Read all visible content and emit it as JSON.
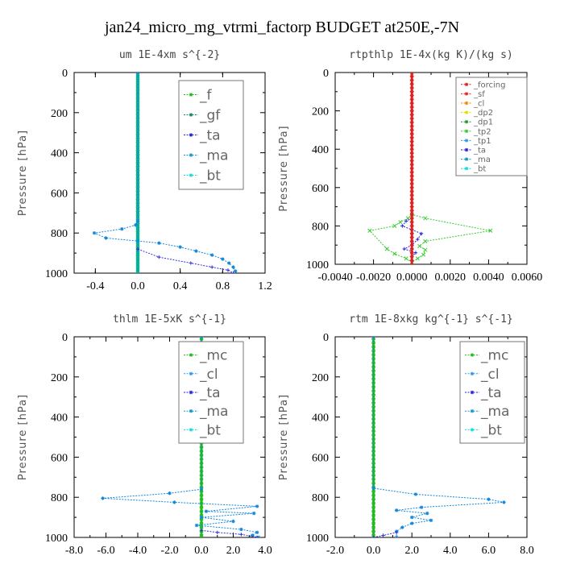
{
  "figure_title": "jan24_micro_mg_vtrmi_factorp  BUDGET at250E,-7N",
  "chart_data": [
    {
      "type": "line",
      "title": "um  1E-4xm s^{-2}",
      "ylabel": "Pressure [hPa]",
      "xlim": [
        -0.6,
        1.2
      ],
      "ylim": [
        1000,
        0
      ],
      "xticks": [
        "-0.4",
        "0.0",
        "0.4",
        "0.8",
        "1.2"
      ],
      "xtick_values": [
        -0.4,
        0.0,
        0.4,
        0.8,
        1.2
      ],
      "yticks": [
        "0",
        "200",
        "400",
        "600",
        "800",
        "1000"
      ],
      "ytick_values": [
        0,
        200,
        400,
        600,
        800,
        1000
      ],
      "legend_size": "large",
      "legend": [
        {
          "name": "_f",
          "color": "#22bb22"
        },
        {
          "name": "_gf",
          "color": "#118866"
        },
        {
          "name": "_ta",
          "color": "#2222dd"
        },
        {
          "name": "_ma",
          "color": "#1199cc"
        },
        {
          "name": "_bt",
          "color": "#11dddd"
        }
      ],
      "series": [
        {
          "name": "_f",
          "color": "#22bb22",
          "marker": "circle",
          "x": [
            0,
            0
          ],
          "y": [
            0,
            1000
          ]
        },
        {
          "name": "_gf",
          "color": "#00b0a0",
          "marker": "x",
          "x": [
            0,
            0
          ],
          "y": [
            0,
            1000
          ]
        },
        {
          "name": "_ta",
          "color": "#3333dd",
          "marker": "plus",
          "x": [
            0.0,
            0.2,
            0.5,
            0.7,
            0.85,
            0.9
          ],
          "y": [
            880,
            920,
            950,
            970,
            985,
            1000
          ]
        },
        {
          "name": "_ma",
          "color": "#1188dd",
          "marker": "star",
          "x": [
            0.0,
            0.0,
            -0.02,
            -0.15,
            -0.41,
            -0.3,
            0.0,
            0.2,
            0.4,
            0.55,
            0.7,
            0.8,
            0.86,
            0.9,
            0.92
          ],
          "y": [
            0,
            740,
            760,
            780,
            800,
            825,
            840,
            850,
            870,
            890,
            910,
            930,
            950,
            970,
            990
          ]
        }
      ]
    },
    {
      "type": "line",
      "title": "rtpthlp  1E-4x(kg K)/(kg s)",
      "ylabel": "Pressure [hPa]",
      "xlim": [
        -0.004,
        0.006
      ],
      "ylim": [
        1000,
        0
      ],
      "xticks": [
        "-0.0040",
        "-0.0020",
        "0.0000",
        "0.0020",
        "0.0040",
        "0.0060"
      ],
      "xtick_values": [
        -0.004,
        -0.002,
        0.0,
        0.002,
        0.004,
        0.006
      ],
      "yticks": [
        "0",
        "200",
        "400",
        "600",
        "800",
        "1000"
      ],
      "ytick_values": [
        0,
        200,
        400,
        600,
        800,
        1000
      ],
      "legend_size": "small",
      "legend": [
        {
          "name": "_forcing",
          "color": "#dd2222"
        },
        {
          "name": "_sf",
          "color": "#ee2222"
        },
        {
          "name": "_cl",
          "color": "#ee8800"
        },
        {
          "name": "_dp2",
          "color": "#dddd00"
        },
        {
          "name": "_dp1",
          "color": "#229922"
        },
        {
          "name": "_tp2",
          "color": "#33cc33"
        },
        {
          "name": "_tp1",
          "color": "#3399ee"
        },
        {
          "name": "_ta",
          "color": "#2222dd"
        },
        {
          "name": "_ma",
          "color": "#1199cc"
        },
        {
          "name": "_bt",
          "color": "#11dddd"
        }
      ],
      "series": [
        {
          "name": "_tp2",
          "color": "#33cc33",
          "marker": "x",
          "x": [
            0.0,
            0.0,
            0.0007,
            0.0041,
            0.0007,
            0.0004,
            0.0007,
            0.0006,
            0.0003,
            0.0,
            -0.0003,
            -0.0009,
            -0.0013,
            -0.0022,
            -0.0009,
            -0.0006,
            -0.0002,
            0.0
          ],
          "y": [
            0,
            740,
            760,
            825,
            880,
            905,
            925,
            950,
            970,
            990,
            970,
            945,
            920,
            825,
            800,
            780,
            760,
            740
          ]
        },
        {
          "name": "_ta",
          "color": "#2222dd",
          "marker": "plus",
          "x": [
            0.0,
            -0.0003,
            -0.0005,
            0.0,
            0.0005,
            0.0003,
            0.0,
            -0.0004,
            0.0002,
            0.0
          ],
          "y": [
            760,
            775,
            800,
            820,
            840,
            870,
            900,
            920,
            940,
            960
          ]
        },
        {
          "name": "_forcing",
          "color": "#dd2222",
          "marker": "diamond",
          "x": [
            0,
            0
          ],
          "y": [
            0,
            1000
          ]
        }
      ]
    },
    {
      "type": "line",
      "title": "thlm  1E-5xK s^{-1}",
      "ylabel": "Pressure [hPa]",
      "xlim": [
        -8,
        4
      ],
      "ylim": [
        1000,
        0
      ],
      "xticks": [
        "-8.0",
        "-6.0",
        "-4.0",
        "-2.0",
        "0.0",
        "2.0",
        "4.0"
      ],
      "xtick_values": [
        -8,
        -6,
        -4,
        -2,
        0,
        2,
        4
      ],
      "yticks": [
        "0",
        "200",
        "400",
        "600",
        "800",
        "1000"
      ],
      "ytick_values": [
        0,
        200,
        400,
        600,
        800,
        1000
      ],
      "legend_size": "large",
      "legend": [
        {
          "name": "_mc",
          "color": "#22bb22"
        },
        {
          "name": "_cl",
          "color": "#3399ee"
        },
        {
          "name": "_ta",
          "color": "#2222dd"
        },
        {
          "name": "_ma",
          "color": "#1199cc"
        },
        {
          "name": "_bt",
          "color": "#11dddd"
        }
      ],
      "series": [
        {
          "name": "_mc",
          "color": "#22bb22",
          "marker": "x",
          "x": [
            0,
            0
          ],
          "y": [
            0,
            1000
          ]
        },
        {
          "name": "_cl",
          "color": "#1188dd",
          "marker": "star",
          "x": [
            0.0,
            0.0,
            -2.0,
            -6.2,
            -1.7,
            3.5,
            0.3,
            3.3,
            0.0,
            2.0,
            -0.3,
            2.5,
            3.5,
            3.2,
            3.6
          ],
          "y": [
            0,
            760,
            780,
            805,
            825,
            845,
            870,
            880,
            900,
            920,
            940,
            960,
            975,
            990,
            1000
          ]
        },
        {
          "name": "_ta",
          "color": "#3333dd",
          "marker": "plus",
          "x": [
            0.0,
            1.0,
            2.5,
            3.5
          ],
          "y": [
            965,
            975,
            985,
            1000
          ]
        }
      ]
    },
    {
      "type": "line",
      "title": "rtm  1E-8xkg kg^{-1} s^{-1}",
      "ylabel": "Pressure [hPa]",
      "xlim": [
        -2,
        8
      ],
      "ylim": [
        1000,
        0
      ],
      "xticks": [
        "-2.0",
        "0.0",
        "2.0",
        "4.0",
        "6.0",
        "8.0"
      ],
      "xtick_values": [
        -2,
        0,
        2,
        4,
        6,
        8
      ],
      "yticks": [
        "0",
        "200",
        "400",
        "600",
        "800",
        "1000"
      ],
      "ytick_values": [
        0,
        200,
        400,
        600,
        800,
        1000
      ],
      "legend_size": "large",
      "legend": [
        {
          "name": "_mc",
          "color": "#22bb22"
        },
        {
          "name": "_cl",
          "color": "#3399ee"
        },
        {
          "name": "_ta",
          "color": "#2222dd"
        },
        {
          "name": "_ma",
          "color": "#1199cc"
        },
        {
          "name": "_bt",
          "color": "#11dddd"
        }
      ],
      "series": [
        {
          "name": "_mc",
          "color": "#22bb22",
          "marker": "x",
          "x": [
            0,
            0
          ],
          "y": [
            0,
            1000
          ]
        },
        {
          "name": "_cl",
          "color": "#1188dd",
          "marker": "star",
          "x": [
            0.0,
            0.0,
            2.2,
            6.0,
            6.8,
            2.5,
            1.2,
            2.8,
            2.0,
            3.0,
            2.0,
            1.5,
            1.2,
            1.2
          ],
          "y": [
            0,
            755,
            785,
            810,
            825,
            850,
            865,
            880,
            900,
            915,
            930,
            950,
            970,
            1000
          ]
        },
        {
          "name": "_ta",
          "color": "#3333dd",
          "marker": "plus",
          "x": [
            0.0,
            0.5,
            1.2
          ],
          "y": [
            1000,
            990,
            975
          ]
        }
      ]
    }
  ]
}
